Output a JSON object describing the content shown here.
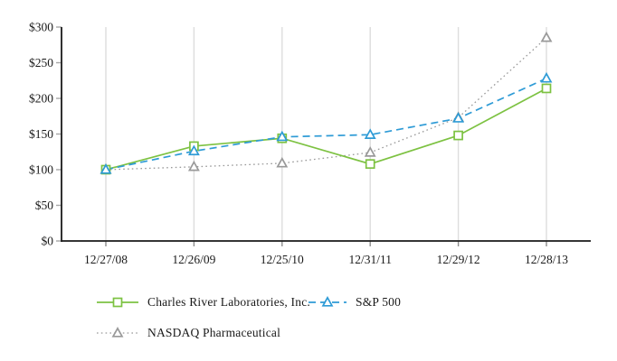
{
  "chart_data": {
    "type": "line",
    "title": "",
    "xlabel": "",
    "ylabel": "",
    "ylabel_prefix": "$",
    "ylim": [
      0,
      300
    ],
    "ytick_step": 50,
    "ytick_labels": [
      "$0",
      "$50",
      "$100",
      "$150",
      "$200",
      "$250",
      "$300"
    ],
    "grid": "vertical-gridlines-only",
    "legend_position": "bottom",
    "categories": [
      "12/27/08",
      "12/26/09",
      "12/25/10",
      "12/31/11",
      "12/29/12",
      "12/28/13"
    ],
    "series": [
      {
        "name": "Charles River Laboratories, Inc.",
        "values": [
          100,
          133,
          144,
          108,
          148,
          214
        ],
        "color": "#7dc242",
        "line_style": "solid",
        "marker": "square"
      },
      {
        "name": "S&P 500",
        "values": [
          100,
          126,
          146,
          149,
          172,
          228
        ],
        "color": "#2e9bd6",
        "line_style": "dashed",
        "marker": "triangle"
      },
      {
        "name": "NASDAQ Pharmaceutical",
        "values": [
          100,
          104,
          109,
          124,
          173,
          285
        ],
        "color": "#999999",
        "line_style": "dotted",
        "marker": "triangle"
      }
    ],
    "colors": {
      "axis": "#1a1a1a",
      "gridline": "#dddddd",
      "tick": "#a6a6a6",
      "text": "#1a1a1a",
      "marker_fill": "#ffffff"
    }
  }
}
